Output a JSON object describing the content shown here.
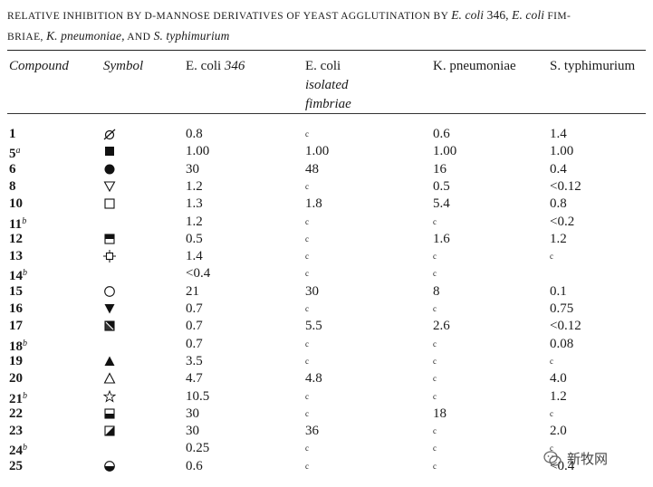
{
  "caption": {
    "part1": "RELATIVE INHIBITION BY D-MANNOSE DERIVATIVES OF YEAST AGGLUTINATION BY ",
    "ecoli346": "E. coli",
    "num346": " 346, ",
    "ecoli2": "E. coli",
    "part2": " FIM-",
    "part3": "BRIAE, ",
    "kpneu": "K. pneumoniae,",
    "part4": " AND ",
    "styph": "S. typhimurium"
  },
  "headers": {
    "compound": "Compound",
    "symbol": "Symbol",
    "col1_a": "E. coli",
    "col1_b": " 346",
    "col2_a": "E. coli",
    "col2_b": "isolated",
    "col2_c": "fimbriae",
    "col3": "K. pneumoniae",
    "col4": "S. typhimurium"
  },
  "rows": [
    {
      "compound": "1",
      "sup": "",
      "symbol": "circle-slash-icon",
      "v": [
        "0.8",
        "c",
        "0.6",
        "1.4"
      ]
    },
    {
      "compound": "5",
      "sup": "a",
      "symbol": "filled-square-icon",
      "v": [
        "1.00",
        "1.00",
        "1.00",
        "1.00"
      ]
    },
    {
      "compound": "6",
      "sup": "",
      "symbol": "filled-circle-icon",
      "v": [
        "30",
        "48",
        "16",
        "0.4"
      ]
    },
    {
      "compound": "8",
      "sup": "",
      "symbol": "open-triangle-down-icon",
      "v": [
        "1.2",
        "c",
        "0.5",
        "<0.12"
      ]
    },
    {
      "compound": "10",
      "sup": "",
      "symbol": "open-square-icon",
      "v": [
        "1.3",
        "1.8",
        "5.4",
        "0.8"
      ]
    },
    {
      "compound": "11",
      "sup": "b",
      "symbol": "",
      "v": [
        "1.2",
        "c",
        "c",
        "<0.2"
      ]
    },
    {
      "compound": "12",
      "sup": "",
      "symbol": "half-filled-top-square-icon",
      "v": [
        "0.5",
        "c",
        "1.6",
        "1.2"
      ]
    },
    {
      "compound": "13",
      "sup": "",
      "symbol": "square-with-ticks-icon",
      "v": [
        "1.4",
        "c",
        "c",
        "c"
      ]
    },
    {
      "compound": "14",
      "sup": "b",
      "symbol": "",
      "v": [
        "<0.4",
        "c",
        "c",
        ""
      ]
    },
    {
      "compound": "15",
      "sup": "",
      "symbol": "open-circle-icon",
      "v": [
        "21",
        "30",
        "8",
        "0.1"
      ]
    },
    {
      "compound": "16",
      "sup": "",
      "symbol": "filled-triangle-down-icon",
      "v": [
        "0.7",
        "c",
        "c",
        "0.75"
      ]
    },
    {
      "compound": "17",
      "sup": "",
      "symbol": "diagonal-half-square-icon",
      "v": [
        "0.7",
        "5.5",
        "2.6",
        "<0.12"
      ]
    },
    {
      "compound": "18",
      "sup": "b",
      "symbol": "",
      "v": [
        "0.7",
        "c",
        "c",
        "0.08"
      ]
    },
    {
      "compound": "19",
      "sup": "",
      "symbol": "filled-triangle-up-icon",
      "v": [
        "3.5",
        "c",
        "c",
        "c"
      ]
    },
    {
      "compound": "20",
      "sup": "",
      "symbol": "open-triangle-up-icon",
      "v": [
        "4.7",
        "4.8",
        "c",
        "4.0"
      ]
    },
    {
      "compound": "21",
      "sup": "b",
      "symbol": "open-star-icon",
      "v": [
        "10.5",
        "c",
        "c",
        "1.2"
      ]
    },
    {
      "compound": "22",
      "sup": "",
      "symbol": "half-filled-bottom-square-icon",
      "v": [
        "30",
        "c",
        "18",
        "c"
      ]
    },
    {
      "compound": "23",
      "sup": "",
      "symbol": "diagonal-half-square-alt-icon",
      "v": [
        "30",
        "36",
        "c",
        "2.0"
      ]
    },
    {
      "compound": "24",
      "sup": "b",
      "symbol": "",
      "v": [
        "0.25",
        "c",
        "c",
        "c"
      ]
    },
    {
      "compound": "25",
      "sup": "",
      "symbol": "half-filled-circle-icon",
      "v": [
        "0.6",
        "c",
        "c",
        "<0.4"
      ]
    }
  ],
  "watermark": {
    "text": "新牧网",
    "icon": "wechat-icon"
  }
}
